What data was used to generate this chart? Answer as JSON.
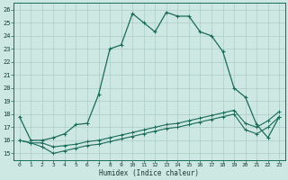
{
  "xlabel": "Humidex (Indice chaleur)",
  "xlim": [
    -0.5,
    23.5
  ],
  "ylim": [
    14.5,
    26.5
  ],
  "xticks": [
    0,
    1,
    2,
    3,
    4,
    5,
    6,
    7,
    8,
    9,
    10,
    11,
    12,
    13,
    14,
    15,
    16,
    17,
    18,
    19,
    20,
    21,
    22,
    23
  ],
  "yticks": [
    15,
    16,
    17,
    18,
    19,
    20,
    21,
    22,
    23,
    24,
    25,
    26
  ],
  "bg_color": "#cde8e2",
  "grid_color": "#aaccC4",
  "line_color": "#1a6b5a",
  "curve1_y": [
    17.8,
    16.0,
    16.0,
    16.2,
    16.5,
    17.2,
    17.3,
    19.5,
    23.0,
    23.3,
    25.7,
    25.0,
    24.3,
    25.8,
    25.5,
    25.5,
    24.3,
    24.0,
    22.8,
    20.0,
    19.3,
    17.2,
    16.2,
    17.8
  ],
  "curve2_y": [
    16.0,
    15.8,
    15.8,
    15.5,
    15.6,
    15.7,
    15.9,
    16.0,
    16.2,
    16.4,
    16.6,
    16.8,
    17.0,
    17.2,
    17.3,
    17.5,
    17.7,
    17.9,
    18.1,
    18.3,
    17.3,
    17.0,
    17.5,
    18.2
  ],
  "curve3_y": [
    16.0,
    15.8,
    15.5,
    15.0,
    15.2,
    15.4,
    15.6,
    15.7,
    15.9,
    16.1,
    16.3,
    16.5,
    16.7,
    16.9,
    17.0,
    17.2,
    17.4,
    17.6,
    17.8,
    18.0,
    16.8,
    16.5,
    17.0,
    17.8
  ]
}
